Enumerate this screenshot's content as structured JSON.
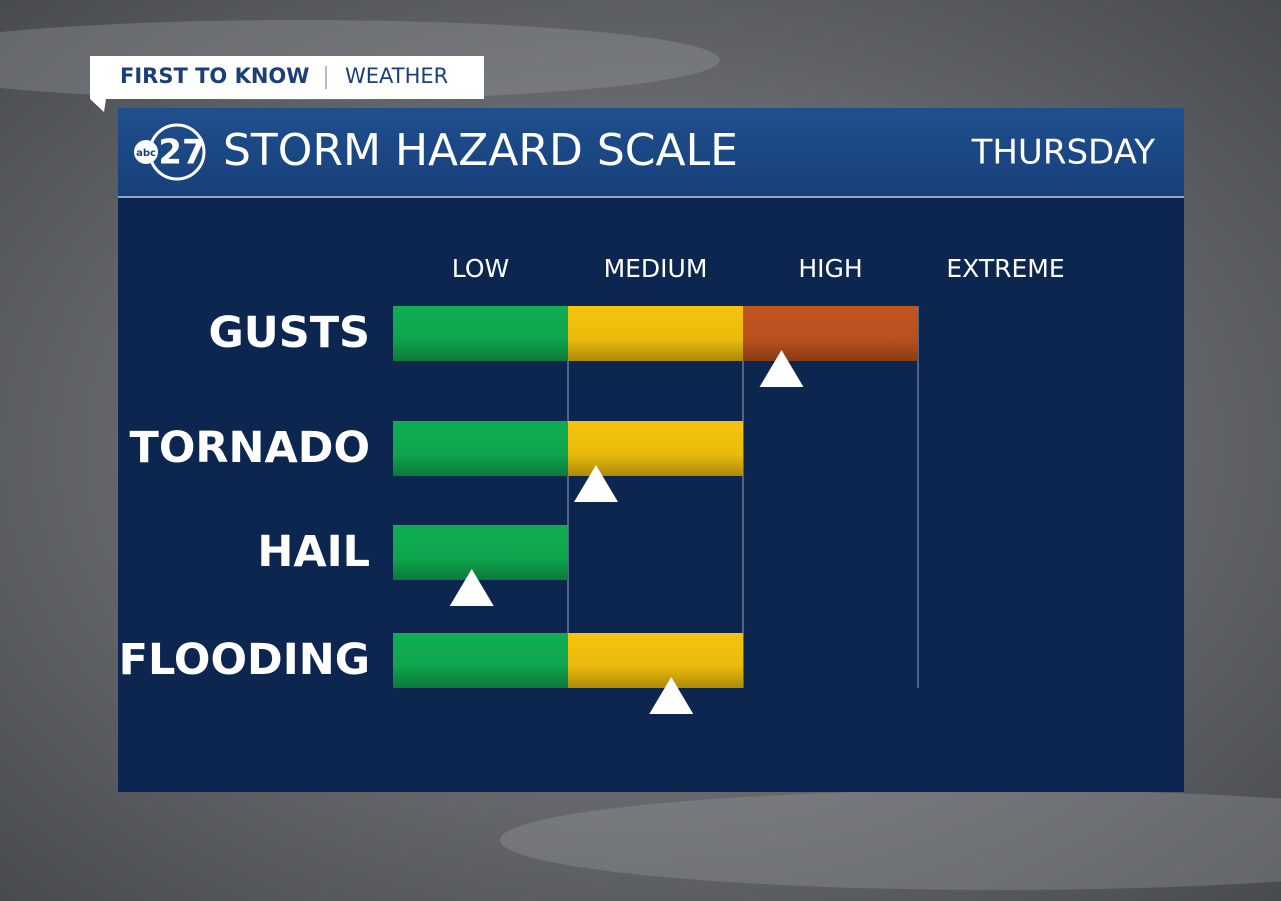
{
  "banner": {
    "brand": "FIRST TO KNOW",
    "section": "WEATHER"
  },
  "logo": {
    "network": "abc",
    "channel": "27"
  },
  "header": {
    "title": "STORM HAZARD SCALE",
    "day": "THURSDAY"
  },
  "chart_data": {
    "type": "hazard-scale",
    "levels": [
      "LOW",
      "MEDIUM",
      "HIGH",
      "EXTREME"
    ],
    "level_colors": [
      "#0fae52",
      "#f6c40d",
      "#c2541f",
      "#8e1c1c"
    ],
    "categories": [
      "GUSTS",
      "TORNADO",
      "HAIL",
      "FLOODING"
    ],
    "values": [
      3,
      2,
      1,
      2
    ],
    "markers": [
      2.22,
      1.16,
      0.45,
      1.59
    ],
    "xlim": [
      0,
      4
    ]
  }
}
